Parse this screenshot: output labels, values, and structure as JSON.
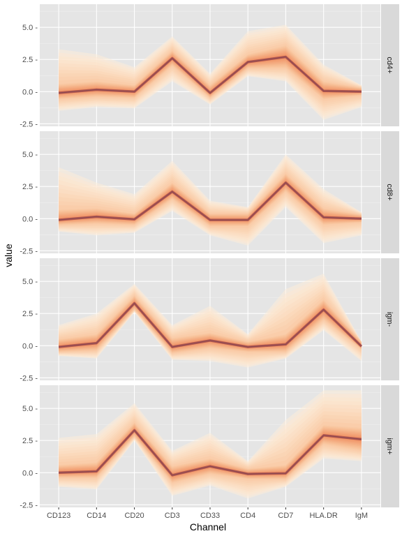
{
  "chart_data": {
    "type": "area",
    "xlabel": "Channel",
    "ylabel": "value",
    "ylim": [
      -2.7,
      6.8
    ],
    "y_ticks": [
      -2.5,
      0.0,
      2.5,
      5.0
    ],
    "y_tick_labels": [
      "-2.5 -",
      "0.0 -",
      "2.5 -",
      "5.0 -"
    ],
    "categories": [
      "CD123",
      "CD14",
      "CD20",
      "CD3",
      "CD33",
      "CD4",
      "CD7",
      "HLA.DR",
      "IgM"
    ],
    "grid": true,
    "legend": "none",
    "colors": {
      "panel_bg": "#e5e5e5",
      "grid_major": "#ffffff",
      "grid_minor": "#f0f0f0",
      "strip_bg": "#d9d9d9",
      "band_outer": "#fdecd9",
      "band_mid": "#f9c7a0",
      "band_inner": "#ee8a5a",
      "median_line": "#b5584f"
    },
    "panels": [
      {
        "label": "cd4+",
        "median": [
          -0.1,
          0.15,
          0.0,
          2.6,
          -0.1,
          2.3,
          2.7,
          0.05,
          0.0
        ],
        "q10": [
          -0.6,
          -0.4,
          -0.5,
          2.0,
          -0.5,
          1.8,
          1.8,
          -0.6,
          -0.3
        ],
        "q90": [
          0.6,
          0.8,
          0.5,
          3.2,
          0.5,
          2.9,
          3.6,
          0.8,
          0.3
        ],
        "min": [
          -1.5,
          -1.2,
          -1.3,
          0.8,
          -1.0,
          1.2,
          0.8,
          -2.2,
          -1.2
        ],
        "max": [
          3.3,
          2.9,
          1.9,
          4.3,
          1.4,
          4.7,
          5.2,
          2.1,
          0.5
        ]
      },
      {
        "label": "cd8+",
        "median": [
          -0.1,
          0.15,
          -0.05,
          2.1,
          -0.1,
          -0.1,
          2.8,
          0.1,
          0.0
        ],
        "q10": [
          -0.5,
          -0.4,
          -0.5,
          1.5,
          -0.6,
          -0.6,
          2.1,
          -0.5,
          -0.3
        ],
        "q90": [
          0.7,
          0.8,
          0.4,
          2.8,
          0.4,
          0.4,
          3.5,
          0.8,
          0.3
        ],
        "min": [
          -1.0,
          -1.3,
          -1.1,
          0.6,
          -1.3,
          -2.1,
          0.9,
          -1.9,
          -1.3
        ],
        "max": [
          4.0,
          2.8,
          1.9,
          4.5,
          1.4,
          0.9,
          5.0,
          2.3,
          0.5
        ]
      },
      {
        "label": "igm-",
        "median": [
          -0.1,
          0.2,
          3.3,
          -0.1,
          0.4,
          -0.1,
          0.1,
          2.8,
          -0.05
        ],
        "q10": [
          -0.5,
          -0.4,
          2.8,
          -0.6,
          -0.2,
          -0.5,
          -0.5,
          2.0,
          -0.3
        ],
        "q90": [
          0.5,
          0.9,
          3.9,
          0.6,
          1.0,
          0.3,
          0.9,
          3.6,
          0.3
        ],
        "min": [
          -0.8,
          -1.0,
          2.6,
          -1.1,
          -1.2,
          -1.7,
          -1.0,
          1.2,
          -1.2
        ],
        "max": [
          1.6,
          2.5,
          4.8,
          1.6,
          3.1,
          0.9,
          4.4,
          5.6,
          0.3
        ]
      },
      {
        "label": "igm+",
        "median": [
          0.0,
          0.1,
          3.3,
          -0.2,
          0.5,
          -0.1,
          -0.05,
          2.9,
          2.6
        ],
        "q10": [
          -0.4,
          -0.4,
          2.8,
          -0.8,
          -0.1,
          -0.5,
          -0.5,
          2.2,
          1.7
        ],
        "q90": [
          0.6,
          0.8,
          3.9,
          0.5,
          1.1,
          0.3,
          0.6,
          3.7,
          3.5
        ],
        "min": [
          -1.1,
          -1.3,
          2.5,
          -1.8,
          -1.0,
          -2.0,
          -1.1,
          1.1,
          0.9
        ],
        "max": [
          2.7,
          3.0,
          5.4,
          1.7,
          3.1,
          0.9,
          4.1,
          6.4,
          6.4
        ]
      }
    ]
  }
}
